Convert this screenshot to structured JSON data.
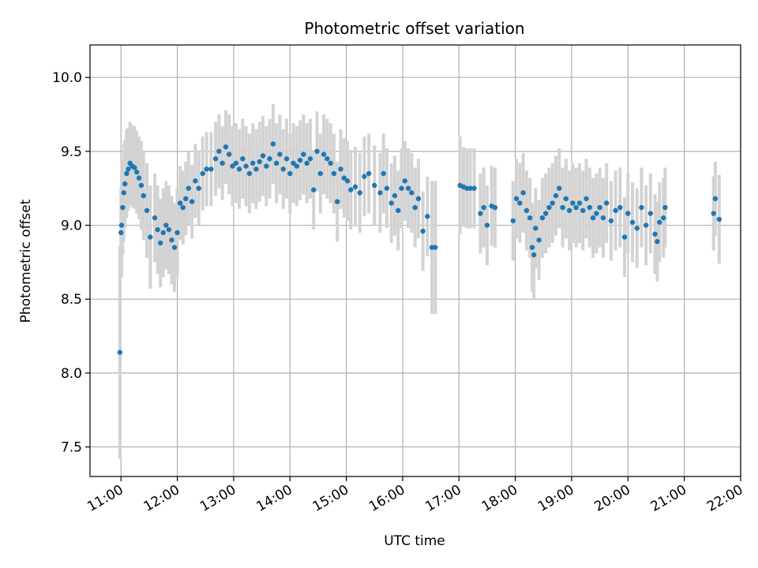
{
  "chart_data": {
    "type": "scatter",
    "title": "Photometric offset variation",
    "xlabel": "UTC time",
    "ylabel": "Photometric offset",
    "xlim": [
      10.45,
      22.0
    ],
    "ylim": [
      7.3,
      10.22
    ],
    "x_ticks": [
      11,
      12,
      13,
      14,
      15,
      16,
      17,
      18,
      19,
      20,
      21,
      22
    ],
    "x_tick_labels": [
      "11:00",
      "12:00",
      "13:00",
      "14:00",
      "15:00",
      "16:00",
      "17:00",
      "18:00",
      "19:00",
      "20:00",
      "21:00",
      "22:00"
    ],
    "y_ticks": [
      7.5,
      8.0,
      8.5,
      9.0,
      9.5,
      10.0
    ],
    "y_tick_labels": [
      "7.5",
      "8.0",
      "8.5",
      "9.0",
      "9.5",
      "10.0"
    ],
    "grid": true,
    "marker_color": "#1f77b4",
    "errorbar_color": "#d3d3d3",
    "series": [
      {
        "points": [
          [
            10.98,
            8.14,
            0.72
          ],
          [
            11.0,
            8.95,
            0.3
          ],
          [
            11.01,
            9.0,
            0.35
          ],
          [
            11.03,
            9.12,
            0.32
          ],
          [
            11.05,
            9.22,
            0.33
          ],
          [
            11.07,
            9.28,
            0.3
          ],
          [
            11.1,
            9.35,
            0.3
          ],
          [
            11.13,
            9.38,
            0.28
          ],
          [
            11.16,
            9.42,
            0.28
          ],
          [
            11.2,
            9.4,
            0.28
          ],
          [
            11.24,
            9.39,
            0.28
          ],
          [
            11.28,
            9.36,
            0.28
          ],
          [
            11.32,
            9.32,
            0.28
          ],
          [
            11.36,
            9.27,
            0.3
          ],
          [
            11.4,
            9.2,
            0.3
          ],
          [
            11.46,
            9.1,
            0.32
          ],
          [
            11.52,
            8.92,
            0.35
          ],
          [
            11.6,
            9.05,
            0.3
          ],
          [
            11.65,
            8.97,
            0.3
          ],
          [
            11.7,
            8.88,
            0.3
          ],
          [
            11.75,
            8.95,
            0.3
          ],
          [
            11.8,
            9.0,
            0.3
          ],
          [
            11.85,
            8.97,
            0.3
          ],
          [
            11.9,
            8.9,
            0.3
          ],
          [
            11.95,
            8.85,
            0.3
          ],
          [
            12.0,
            8.95,
            0.3
          ],
          [
            12.05,
            9.15,
            0.25
          ],
          [
            12.1,
            9.12,
            0.25
          ],
          [
            12.15,
            9.18,
            0.25
          ],
          [
            12.2,
            9.25,
            0.25
          ],
          [
            12.26,
            9.16,
            0.25
          ],
          [
            12.32,
            9.3,
            0.25
          ],
          [
            12.38,
            9.25,
            0.25
          ],
          [
            12.45,
            9.35,
            0.25
          ],
          [
            12.52,
            9.38,
            0.25
          ],
          [
            12.6,
            9.38,
            0.25
          ],
          [
            12.68,
            9.45,
            0.25
          ],
          [
            12.74,
            9.5,
            0.25
          ],
          [
            12.8,
            9.42,
            0.25
          ],
          [
            12.86,
            9.53,
            0.25
          ],
          [
            12.92,
            9.48,
            0.27
          ],
          [
            12.98,
            9.4,
            0.27
          ],
          [
            13.04,
            9.42,
            0.27
          ],
          [
            13.1,
            9.38,
            0.27
          ],
          [
            13.16,
            9.45,
            0.27
          ],
          [
            13.22,
            9.4,
            0.27
          ],
          [
            13.28,
            9.35,
            0.27
          ],
          [
            13.34,
            9.42,
            0.27
          ],
          [
            13.4,
            9.38,
            0.27
          ],
          [
            13.46,
            9.43,
            0.27
          ],
          [
            13.52,
            9.47,
            0.27
          ],
          [
            13.58,
            9.4,
            0.27
          ],
          [
            13.64,
            9.45,
            0.27
          ],
          [
            13.7,
            9.55,
            0.27
          ],
          [
            13.76,
            9.42,
            0.27
          ],
          [
            13.82,
            9.48,
            0.27
          ],
          [
            13.88,
            9.38,
            0.27
          ],
          [
            13.94,
            9.45,
            0.27
          ],
          [
            14.0,
            9.35,
            0.27
          ],
          [
            14.06,
            9.42,
            0.27
          ],
          [
            14.12,
            9.4,
            0.27
          ],
          [
            14.18,
            9.44,
            0.27
          ],
          [
            14.24,
            9.48,
            0.27
          ],
          [
            14.3,
            9.42,
            0.27
          ],
          [
            14.36,
            9.45,
            0.27
          ],
          [
            14.42,
            9.24,
            0.27
          ],
          [
            14.48,
            9.5,
            0.27
          ],
          [
            14.54,
            9.35,
            0.27
          ],
          [
            14.6,
            9.48,
            0.27
          ],
          [
            14.66,
            9.45,
            0.27
          ],
          [
            14.72,
            9.42,
            0.27
          ],
          [
            14.78,
            9.35,
            0.27
          ],
          [
            14.84,
            9.16,
            0.27
          ],
          [
            14.9,
            9.38,
            0.27
          ],
          [
            14.96,
            9.32,
            0.27
          ],
          [
            15.02,
            9.3,
            0.27
          ],
          [
            15.08,
            9.24,
            0.27
          ],
          [
            15.16,
            9.26,
            0.27
          ],
          [
            15.24,
            9.22,
            0.27
          ],
          [
            15.32,
            9.33,
            0.27
          ],
          [
            15.4,
            9.35,
            0.27
          ],
          [
            15.5,
            9.27,
            0.27
          ],
          [
            15.6,
            9.22,
            0.27
          ],
          [
            15.66,
            9.35,
            0.27
          ],
          [
            15.72,
            9.25,
            0.27
          ],
          [
            15.8,
            9.15,
            0.27
          ],
          [
            15.86,
            9.2,
            0.27
          ],
          [
            15.92,
            9.1,
            0.27
          ],
          [
            15.98,
            9.25,
            0.27
          ],
          [
            16.04,
            9.3,
            0.27
          ],
          [
            16.1,
            9.25,
            0.27
          ],
          [
            16.16,
            9.22,
            0.27
          ],
          [
            16.22,
            9.12,
            0.27
          ],
          [
            16.28,
            9.18,
            0.27
          ],
          [
            16.36,
            8.96,
            0.27
          ],
          [
            16.44,
            9.06,
            0.27
          ],
          [
            16.52,
            8.85,
            0.45
          ],
          [
            16.58,
            8.85,
            0.45
          ],
          [
            17.02,
            9.27,
            0.33
          ],
          [
            17.08,
            9.26,
            0.27
          ],
          [
            17.14,
            9.25,
            0.27
          ],
          [
            17.2,
            9.25,
            0.27
          ],
          [
            17.27,
            9.25,
            0.27
          ],
          [
            17.38,
            9.08,
            0.27
          ],
          [
            17.44,
            9.12,
            0.27
          ],
          [
            17.5,
            9.0,
            0.27
          ],
          [
            17.58,
            9.13,
            0.27
          ],
          [
            17.64,
            9.12,
            0.27
          ],
          [
            17.96,
            9.03,
            0.27
          ],
          [
            18.02,
            9.18,
            0.27
          ],
          [
            18.08,
            9.15,
            0.27
          ],
          [
            18.14,
            9.22,
            0.27
          ],
          [
            18.2,
            9.1,
            0.27
          ],
          [
            18.26,
            9.05,
            0.27
          ],
          [
            18.3,
            8.85,
            0.3
          ],
          [
            18.33,
            8.8,
            0.3
          ],
          [
            18.36,
            8.98,
            0.27
          ],
          [
            18.42,
            8.9,
            0.27
          ],
          [
            18.48,
            9.05,
            0.27
          ],
          [
            18.54,
            9.08,
            0.27
          ],
          [
            18.6,
            9.12,
            0.27
          ],
          [
            18.66,
            9.15,
            0.27
          ],
          [
            18.72,
            9.2,
            0.27
          ],
          [
            18.78,
            9.25,
            0.27
          ],
          [
            18.84,
            9.12,
            0.27
          ],
          [
            18.9,
            9.18,
            0.27
          ],
          [
            18.96,
            9.1,
            0.27
          ],
          [
            19.02,
            9.15,
            0.27
          ],
          [
            19.08,
            9.12,
            0.27
          ],
          [
            19.14,
            9.15,
            0.27
          ],
          [
            19.2,
            9.1,
            0.27
          ],
          [
            19.26,
            9.18,
            0.27
          ],
          [
            19.32,
            9.12,
            0.27
          ],
          [
            19.38,
            9.05,
            0.27
          ],
          [
            19.44,
            9.08,
            0.27
          ],
          [
            19.5,
            9.12,
            0.27
          ],
          [
            19.56,
            9.05,
            0.27
          ],
          [
            19.62,
            9.15,
            0.27
          ],
          [
            19.7,
            9.03,
            0.27
          ],
          [
            19.78,
            9.1,
            0.27
          ],
          [
            19.86,
            9.12,
            0.27
          ],
          [
            19.94,
            8.92,
            0.27
          ],
          [
            20.0,
            9.08,
            0.27
          ],
          [
            20.08,
            9.02,
            0.27
          ],
          [
            20.16,
            8.98,
            0.27
          ],
          [
            20.24,
            9.12,
            0.27
          ],
          [
            20.32,
            9.0,
            0.27
          ],
          [
            20.4,
            9.08,
            0.27
          ],
          [
            20.48,
            8.94,
            0.27
          ],
          [
            20.52,
            8.89,
            0.27
          ],
          [
            20.56,
            9.02,
            0.27
          ],
          [
            20.63,
            9.05,
            0.27
          ],
          [
            20.66,
            9.12,
            0.27
          ],
          [
            21.52,
            9.08,
            0.25
          ],
          [
            21.55,
            9.18,
            0.25
          ],
          [
            21.62,
            9.04,
            0.3
          ]
        ]
      }
    ]
  }
}
